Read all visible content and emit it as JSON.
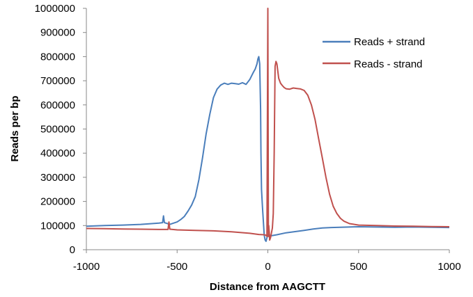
{
  "chart_data": {
    "type": "line",
    "title": "",
    "xlabel": "Distance from AAGCTT",
    "ylabel": "Reads per bp",
    "xlim": [
      -1000,
      1000
    ],
    "ylim": [
      0,
      1000000
    ],
    "x_ticks": [
      "-1000",
      "-500",
      "0",
      "500",
      "1000"
    ],
    "y_ticks": [
      "0",
      "100000",
      "200000",
      "300000",
      "400000",
      "500000",
      "600000",
      "700000",
      "800000",
      "900000",
      "1000000"
    ],
    "grid": false,
    "legend_position": "top-right",
    "series": [
      {
        "name": "Reads + strand",
        "color": "#4A7EBB",
        "x": [
          -1000,
          -900,
          -800,
          -700,
          -600,
          -580,
          -575,
          -570,
          -540,
          -500,
          -480,
          -460,
          -440,
          -420,
          -400,
          -380,
          -360,
          -340,
          -320,
          -300,
          -280,
          -260,
          -240,
          -220,
          -200,
          -180,
          -160,
          -140,
          -120,
          -100,
          -90,
          -80,
          -70,
          -60,
          -55,
          -50,
          -45,
          -40,
          -38,
          -35,
          -30,
          -25,
          -20,
          -15,
          -10,
          -5,
          0,
          5,
          10,
          20,
          50,
          100,
          150,
          200,
          250,
          300,
          350,
          400,
          500,
          600,
          700,
          800,
          900,
          1000
        ],
        "y": [
          97000,
          100000,
          102000,
          105000,
          110000,
          112000,
          140000,
          112000,
          105000,
          115000,
          125000,
          138000,
          160000,
          185000,
          220000,
          290000,
          380000,
          480000,
          560000,
          630000,
          665000,
          682000,
          690000,
          685000,
          690000,
          688000,
          686000,
          692000,
          685000,
          705000,
          720000,
          735000,
          748000,
          770000,
          790000,
          800000,
          770000,
          580000,
          400000,
          250000,
          180000,
          120000,
          60000,
          40000,
          35000,
          50000,
          60000,
          62000,
          60000,
          58000,
          62000,
          70000,
          75000,
          80000,
          86000,
          90000,
          92000,
          93000,
          95000,
          94000,
          93000,
          94000,
          93000,
          92000
        ]
      },
      {
        "name": "Reads - strand",
        "color": "#C0504D",
        "x": [
          -1000,
          -900,
          -800,
          -700,
          -600,
          -550,
          -545,
          -540,
          -500,
          -400,
          -300,
          -200,
          -100,
          -50,
          -20,
          -10,
          -5,
          0,
          3,
          5,
          8,
          10,
          15,
          20,
          25,
          30,
          35,
          40,
          45,
          50,
          55,
          60,
          70,
          80,
          90,
          100,
          120,
          140,
          160,
          180,
          200,
          220,
          240,
          260,
          280,
          300,
          320,
          340,
          360,
          380,
          400,
          420,
          450,
          500,
          600,
          700,
          800,
          900,
          1000
        ],
        "y": [
          88000,
          87000,
          86000,
          85000,
          84000,
          84000,
          115000,
          85000,
          82000,
          80000,
          78000,
          74000,
          68000,
          63000,
          62000,
          60000,
          55000,
          1000000,
          55000,
          100000,
          70000,
          40000,
          50000,
          70000,
          90000,
          150000,
          400000,
          760000,
          780000,
          770000,
          740000,
          710000,
          690000,
          680000,
          672000,
          667000,
          665000,
          670000,
          668000,
          666000,
          660000,
          640000,
          600000,
          540000,
          460000,
          380000,
          300000,
          230000,
          180000,
          150000,
          130000,
          118000,
          108000,
          102000,
          100000,
          98000,
          97000,
          96000,
          95000
        ]
      }
    ]
  }
}
